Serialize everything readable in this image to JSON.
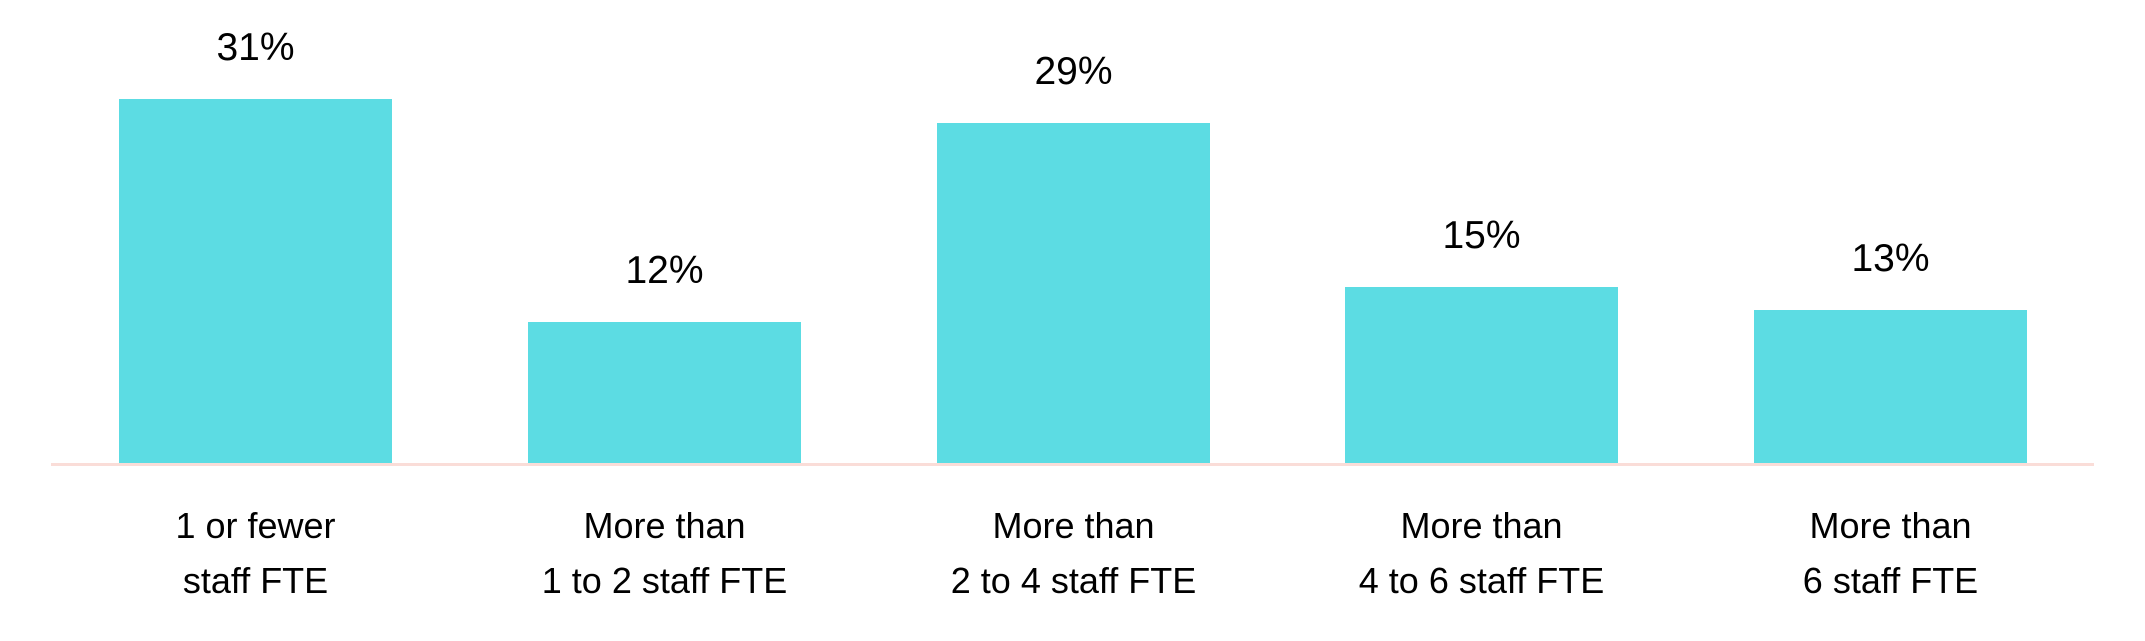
{
  "chart_data": {
    "type": "bar",
    "title": "",
    "xlabel": "",
    "ylabel": "",
    "categories": [
      "1 or fewer staff FTE",
      "More than 1 to 2 staff FTE",
      "More than 2 to 4 staff FTE",
      "More than 4 to 6 staff FTE",
      "More than 6 staff FTE"
    ],
    "values": [
      31,
      12,
      29,
      15,
      13
    ],
    "value_labels": [
      "31%",
      "12%",
      "29%",
      "15%",
      "13%"
    ],
    "unit": "%",
    "ylim": [
      0,
      35
    ],
    "grid": false,
    "legend": null,
    "bar_color": "#5CDCE3",
    "axis_color": "#FADDD8"
  },
  "bars": [
    {
      "value_label": "31%",
      "line1": "1 or fewer",
      "line2": "staff FTE"
    },
    {
      "value_label": "12%",
      "line1": "More than",
      "line2": "1 to 2 staff FTE"
    },
    {
      "value_label": "29%",
      "line1": "More than",
      "line2": "2 to 4 staff FTE"
    },
    {
      "value_label": "15%",
      "line1": "More than",
      "line2": "4 to 6 staff FTE"
    },
    {
      "value_label": "13%",
      "line1": "More than",
      "line2": "6 staff FTE"
    }
  ]
}
